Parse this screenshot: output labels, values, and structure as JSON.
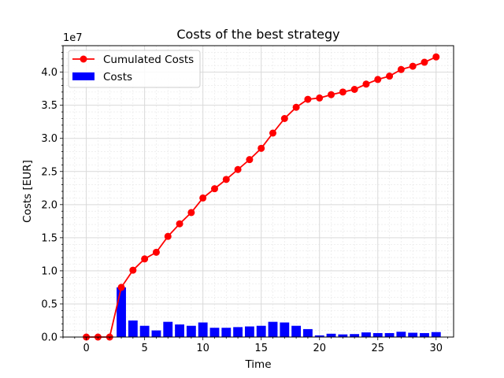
{
  "chart_data": {
    "type": "bar",
    "title": "Costs of the best strategy",
    "xlabel": "Time",
    "ylabel": "Costs [EUR]",
    "y_offset_text": "1e7",
    "xlim": [
      -2,
      31.5
    ],
    "ylim": [
      0,
      44000000
    ],
    "x_ticks": [
      0,
      5,
      10,
      15,
      20,
      25,
      30
    ],
    "y_ticks": [
      0,
      5000000,
      10000000,
      15000000,
      20000000,
      25000000,
      30000000,
      35000000,
      40000000
    ],
    "y_tick_labels": [
      "0.0",
      "0.5",
      "1.0",
      "1.5",
      "2.0",
      "2.5",
      "3.0",
      "3.5",
      "4.0"
    ],
    "grid": true,
    "legend_position": "top-left",
    "series": [
      {
        "name": "Cumulated Costs",
        "kind": "line",
        "color": "#ff0000",
        "x": [
          0,
          1,
          2,
          3,
          4,
          5,
          6,
          7,
          8,
          9,
          10,
          11,
          12,
          13,
          14,
          15,
          16,
          17,
          18,
          19,
          20,
          21,
          22,
          23,
          24,
          25,
          26,
          27,
          28,
          29,
          30
        ],
        "y": [
          0,
          0,
          0,
          7500000,
          10100000,
          11800000,
          12800000,
          15200000,
          17100000,
          18800000,
          21000000,
          22400000,
          23800000,
          25300000,
          26800000,
          28500000,
          30800000,
          33000000,
          34700000,
          35900000,
          36100000,
          36600000,
          37000000,
          37400000,
          38200000,
          38900000,
          39400000,
          40400000,
          40900000,
          41500000,
          42300000
        ]
      },
      {
        "name": "Costs",
        "kind": "bar",
        "color": "#0000ff",
        "x": [
          0,
          1,
          2,
          3,
          4,
          5,
          6,
          7,
          8,
          9,
          10,
          11,
          12,
          13,
          14,
          15,
          16,
          17,
          18,
          19,
          20,
          21,
          22,
          23,
          24,
          25,
          26,
          27,
          28,
          29,
          30
        ],
        "y": [
          0,
          0,
          0,
          7500000,
          2500000,
          1700000,
          1000000,
          2300000,
          1900000,
          1700000,
          2200000,
          1400000,
          1400000,
          1500000,
          1600000,
          1700000,
          2300000,
          2200000,
          1700000,
          1200000,
          250000,
          500000,
          400000,
          450000,
          700000,
          600000,
          600000,
          800000,
          650000,
          600000,
          750000
        ]
      }
    ]
  }
}
